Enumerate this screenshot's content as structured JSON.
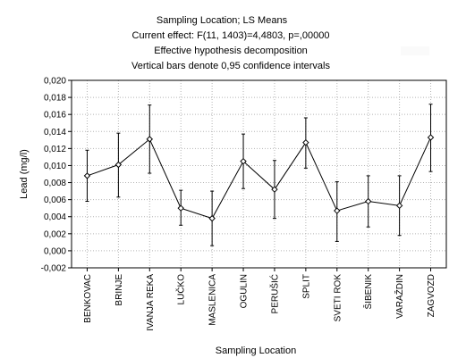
{
  "chart_data": {
    "type": "line",
    "title": "Sampling Location; LS Means",
    "subtitle_lines": [
      "Current effect: F(11, 1403)=4,4803, p=,00000",
      "Effective hypothesis decomposition",
      "Vertical bars denote 0,95 confidence intervals"
    ],
    "xlabel": "Sampling Location",
    "ylabel": "Lead (mg/l)",
    "ylim": [
      -0.002,
      0.02
    ],
    "yticks": [
      "0,020",
      "0,018",
      "0,016",
      "0,014",
      "0,012",
      "0,010",
      "0,008",
      "0,006",
      "0,004",
      "0,002",
      "0,000",
      "-0,002"
    ],
    "grid": true,
    "categories": [
      "BENKOVAC",
      "BRINJE",
      "IVANJA REKA",
      "LUČKO",
      "MASLENICA",
      "OGULIN",
      "PERUŠIĆ",
      "SPLIT",
      "SVETI ROK",
      "ŠIBENIK",
      "VARAŽDIN",
      "ZAGVOZD"
    ],
    "series": [
      {
        "values": [
          0.0088,
          0.0101,
          0.0131,
          0.005,
          0.0038,
          0.0105,
          0.0072,
          0.0127,
          0.0047,
          0.0058,
          0.0053,
          0.0133
        ],
        "ci_lower": [
          0.0058,
          0.0063,
          0.0091,
          0.003,
          0.0006,
          0.0073,
          0.0038,
          0.0097,
          0.0011,
          0.0028,
          0.0018,
          0.0093
        ],
        "ci_upper": [
          0.0118,
          0.0138,
          0.0171,
          0.0071,
          0.007,
          0.0137,
          0.0106,
          0.0156,
          0.0081,
          0.0088,
          0.0088,
          0.0172
        ]
      }
    ]
  }
}
